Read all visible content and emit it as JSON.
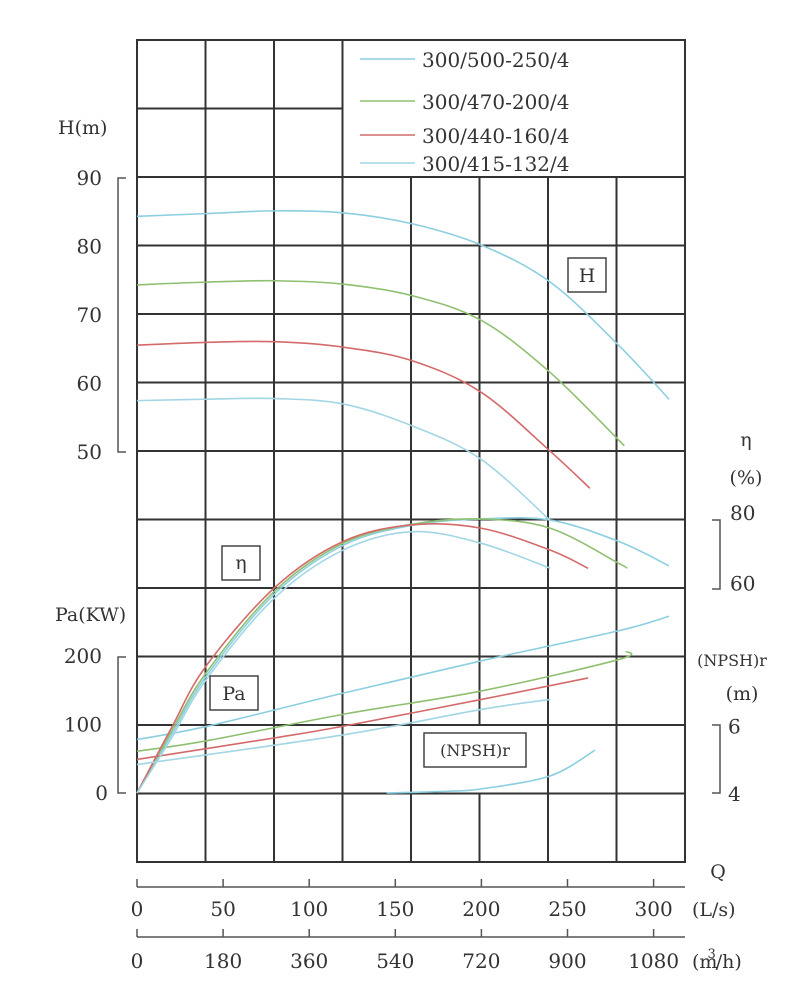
{
  "chart_data": {
    "type": "line",
    "legend": {
      "placement": "top-right",
      "entries": [
        "300/500-250/4",
        "300/470-200/4",
        "300/440-160/4",
        "300/415-132/4"
      ]
    },
    "grid": true,
    "x_axis": {
      "label": "Q",
      "unit_primary": "(L/s)",
      "ticks_primary": [
        "0",
        "50",
        "100",
        "150",
        "200",
        "250",
        "300"
      ],
      "tick_values_primary": [
        0,
        50,
        100,
        150,
        200,
        250,
        300
      ],
      "unit_secondary_base": "(m",
      "unit_secondary_sup": "3",
      "unit_secondary_tail": "/h)",
      "ticks_secondary": [
        "0",
        "180",
        "360",
        "540",
        "720",
        "900",
        "1080"
      ],
      "range": [
        0,
        318
      ]
    },
    "y_axes": {
      "head": {
        "label": "H(m)",
        "ticks": [
          "90",
          "80",
          "70",
          "60",
          "50"
        ],
        "tick_values": [
          90,
          80,
          70,
          60,
          50
        ],
        "range": [
          50,
          90
        ]
      },
      "efficiency": {
        "label": "η",
        "unit": "(%)",
        "ticks": [
          "80",
          "60"
        ],
        "tick_values": [
          80,
          60
        ]
      },
      "power": {
        "label": "Pa(KW)",
        "ticks": [
          "200",
          "100",
          "0"
        ],
        "tick_values": [
          200,
          100,
          0
        ]
      },
      "npsh": {
        "label": "(NPSH)r",
        "unit": "(m)",
        "ticks": [
          "6",
          "4"
        ],
        "tick_values": [
          6,
          4
        ]
      }
    },
    "curve_labels": {
      "head": "H",
      "efficiency": "η",
      "power": "Pa",
      "npsh": "(NPSH)r"
    },
    "series": [
      {
        "name": "300/500-250/4",
        "color": "#8ccfe0",
        "head": [
          [
            0,
            84.4
          ],
          [
            40,
            84.8
          ],
          [
            80,
            85.2
          ],
          [
            120,
            84.9
          ],
          [
            160,
            83.3
          ],
          [
            200,
            80.2
          ],
          [
            240,
            74.8
          ],
          [
            280,
            65.5
          ],
          [
            309,
            57.7
          ]
        ],
        "efficiency": [
          [
            0,
            0
          ],
          [
            20,
            17
          ],
          [
            40,
            34
          ],
          [
            80,
            58.2
          ],
          [
            120,
            72.4
          ],
          [
            160,
            78.2
          ],
          [
            200,
            80
          ],
          [
            240,
            79.7
          ],
          [
            280,
            73.4
          ],
          [
            309,
            66.3
          ]
        ],
        "power": [
          [
            0,
            78
          ],
          [
            40,
            97
          ],
          [
            120,
            146
          ],
          [
            200,
            193
          ],
          [
            280,
            237
          ],
          [
            309,
            258
          ]
        ]
      },
      {
        "name": "300/470-200/4",
        "color": "#8fc070",
        "head": [
          [
            0,
            74.4
          ],
          [
            40,
            74.8
          ],
          [
            80,
            75
          ],
          [
            120,
            74.5
          ],
          [
            160,
            72.8
          ],
          [
            200,
            69.2
          ],
          [
            240,
            61.6
          ],
          [
            283,
            50.9
          ]
        ],
        "efficiency": [
          [
            0,
            0
          ],
          [
            20,
            18
          ],
          [
            40,
            35
          ],
          [
            80,
            59
          ],
          [
            120,
            73
          ],
          [
            160,
            78.5
          ],
          [
            200,
            80
          ],
          [
            240,
            77.3
          ],
          [
            280,
            67
          ],
          [
            284,
            65.8
          ]
        ],
        "power": [
          [
            0,
            61
          ],
          [
            40,
            76
          ],
          [
            120,
            115
          ],
          [
            200,
            149
          ],
          [
            280,
            195
          ],
          [
            284,
            207
          ]
        ]
      },
      {
        "name": "300/440-160/4",
        "color": "#d46a6a",
        "head": [
          [
            0,
            65.6
          ],
          [
            40,
            66
          ],
          [
            80,
            66.1
          ],
          [
            120,
            65.3
          ],
          [
            160,
            63.3
          ],
          [
            200,
            58.7
          ],
          [
            240,
            50.1
          ],
          [
            263,
            44.7
          ]
        ],
        "efficiency": [
          [
            0,
            0
          ],
          [
            20,
            19
          ],
          [
            40,
            37
          ],
          [
            80,
            60
          ],
          [
            120,
            73.5
          ],
          [
            160,
            78.3
          ],
          [
            200,
            77.3
          ],
          [
            240,
            70.9
          ],
          [
            262,
            65.6
          ]
        ],
        "power": [
          [
            0,
            49
          ],
          [
            80,
            80.5
          ],
          [
            120,
            97.6
          ],
          [
            200,
            136.6
          ],
          [
            262,
            168
          ]
        ]
      },
      {
        "name": "300/415-132/4",
        "color": "#a2d6e4",
        "head": [
          [
            0,
            57.5
          ],
          [
            40,
            57.7
          ],
          [
            80,
            57.8
          ],
          [
            120,
            57
          ],
          [
            160,
            53.8
          ],
          [
            200,
            48.9
          ],
          [
            240,
            40
          ]
        ],
        "efficiency": [
          [
            0,
            0
          ],
          [
            20,
            16
          ],
          [
            40,
            33
          ],
          [
            80,
            57
          ],
          [
            120,
            71
          ],
          [
            160,
            76.3
          ],
          [
            200,
            72.9
          ],
          [
            240,
            65.6
          ]
        ],
        "power": [
          [
            0,
            41.5
          ],
          [
            120,
            85
          ],
          [
            200,
            122
          ],
          [
            240,
            136.6
          ]
        ]
      }
    ],
    "npsh_curve": {
      "color": "#8ccfe0",
      "points": [
        [
          145,
          4.0
        ],
        [
          180,
          4.05
        ],
        [
          200,
          4.12
        ],
        [
          240,
          4.5
        ],
        [
          266,
          5.25
        ]
      ]
    }
  }
}
